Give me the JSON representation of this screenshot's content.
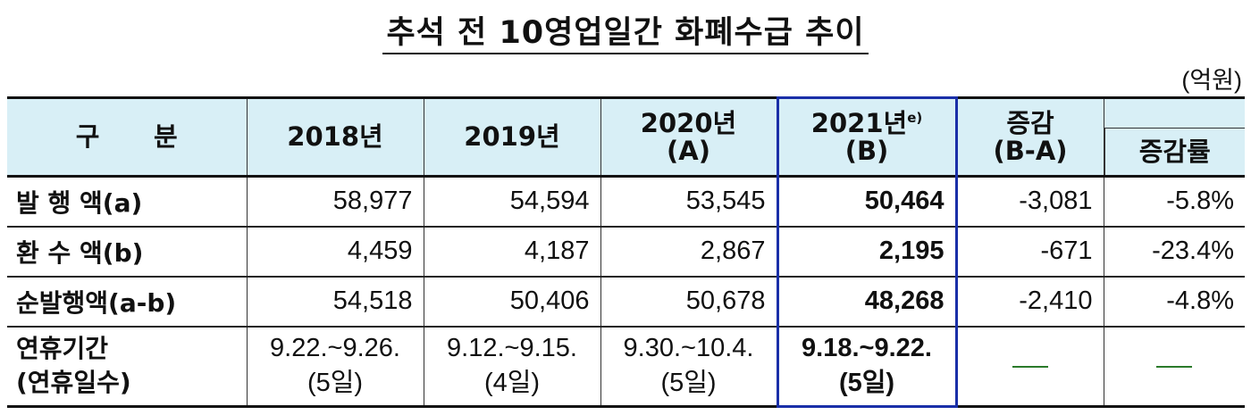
{
  "title": "추석 전 10영업일간 화폐수급 추이",
  "unit": "(억원)",
  "header": {
    "category": "구      분",
    "y2018": "2018년",
    "y2019": "2019년",
    "y2020_line1": "2020년",
    "y2020_line2": "(A)",
    "y2021_line1": "2021년",
    "y2021_sup": "e)",
    "y2021_line2": "(B)",
    "change_line1": "증감",
    "change_line2": "(B-A)",
    "rate": "증감률"
  },
  "rows": [
    {
      "label": "발 행 액(a)",
      "y2018": "58,977",
      "y2019": "54,594",
      "y2020": "53,545",
      "y2021": "50,464",
      "change": "-3,081",
      "rate": "-5.8%"
    },
    {
      "label": "환 수 액(b)",
      "y2018": "4,459",
      "y2019": "4,187",
      "y2020": "2,867",
      "y2021": "2,195",
      "change": "-671",
      "rate": "-23.4%"
    },
    {
      "label": "순발행액(a-b)",
      "y2018": "54,518",
      "y2019": "50,406",
      "y2020": "50,678",
      "y2021": "48,268",
      "change": "-2,410",
      "rate": "-4.8%"
    }
  ],
  "holiday": {
    "label_line1": "연휴기간",
    "label_line2": "(연휴일수)",
    "y2018_line1": "9.22.~9.26.",
    "y2018_line2": "(5일)",
    "y2019_line1": "9.12.~9.15.",
    "y2019_line2": "(4일)",
    "y2020_line1": "9.30.~10.4.",
    "y2020_line2": "(5일)",
    "y2021_line1": "9.18.~9.22.",
    "y2021_line2": "(5일)",
    "change": "—",
    "rate": "—"
  },
  "colors": {
    "header_bg": "#d8eff6",
    "highlight_border": "#1a2fa8",
    "dash": "#2a7a2a"
  }
}
